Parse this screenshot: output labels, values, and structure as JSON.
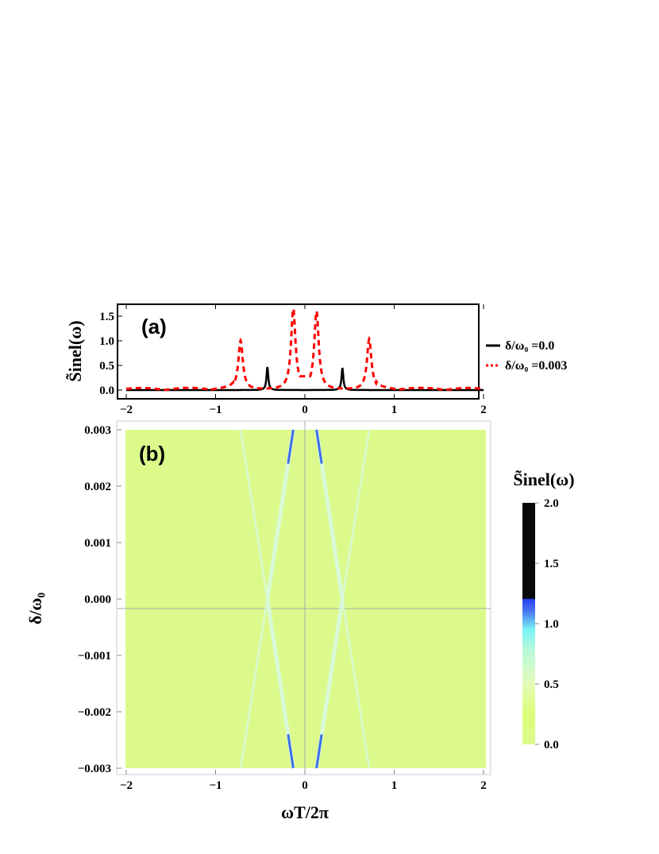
{
  "chart_data": [
    {
      "type": "line",
      "panel_label": "(a)",
      "ylabel": "S̃inel(ω)",
      "xlim": [
        -2,
        2
      ],
      "ylim": [
        -0.15,
        1.8
      ],
      "xticks": [
        "−2",
        "−1",
        "0",
        "1",
        "2"
      ],
      "xtick_values": [
        -2,
        -1,
        0,
        1,
        2
      ],
      "yticks": [
        "0.0",
        "0.5",
        "1.0",
        "1.5"
      ],
      "ytick_values": [
        0,
        0.5,
        1,
        1.5
      ],
      "legend_position": "right-outside",
      "series": [
        {
          "name": "δ/ω₀ =0.0",
          "color": "#000000",
          "style": "solid",
          "width": 0.012,
          "peaks": [
            {
              "x": -0.42,
              "y": 0.47
            },
            {
              "x": 0.42,
              "y": 0.45
            }
          ]
        },
        {
          "name": "δ/ω₀ =0.003",
          "color": "#ff0000",
          "style": "dashed",
          "width": 0.03,
          "peaks": [
            {
              "x": -0.72,
              "y": 1.0
            },
            {
              "x": -0.13,
              "y": 1.63
            },
            {
              "x": 0.13,
              "y": 1.58
            },
            {
              "x": 0.72,
              "y": 1.03
            }
          ]
        }
      ]
    },
    {
      "type": "heatmap",
      "panel_label": "(b)",
      "xlabel": "ωT/2π",
      "ylabel": "δ/ω₀",
      "xlim": [
        -2,
        2
      ],
      "ylim": [
        -0.003,
        0.003
      ],
      "xticks": [
        "−2",
        "−1",
        "0",
        "1",
        "2"
      ],
      "xtick_values": [
        -2,
        -1,
        0,
        1,
        2
      ],
      "yticks": [
        "0.003",
        "0.002",
        "0.001",
        "0.000",
        "−0.001",
        "−0.002",
        "−0.003"
      ],
      "ytick_values": [
        0.003,
        0.002,
        0.001,
        0,
        -0.001,
        -0.002,
        -0.003
      ],
      "colorbar": {
        "title": "S̃inel(ω)",
        "ticks": [
          "0.0",
          "0.5",
          "1.0",
          "1.5",
          "2.0"
        ],
        "tick_values": [
          0,
          0.5,
          1,
          1.5,
          2
        ],
        "range": [
          0,
          2
        ],
        "stops": [
          {
            "v": 0,
            "c": "#dcfa8c"
          },
          {
            "v": 0.25,
            "c": "#dcfd78"
          },
          {
            "v": 0.5,
            "c": "#e4fbb8"
          },
          {
            "v": 0.8,
            "c": "#b4f8dc"
          },
          {
            "v": 0.95,
            "c": "#78f4f4"
          },
          {
            "v": 1.1,
            "c": "#4a78f0"
          },
          {
            "v": 1.2,
            "c": "#2a40f0"
          },
          {
            "v": 1.21,
            "c": "#08090a"
          },
          {
            "v": 2,
            "c": "#08090a"
          }
        ]
      },
      "background_value": 0.1,
      "branches": [
        {
          "from": [
            0.42,
            0
          ],
          "to": [
            0.13,
            0.003
          ],
          "peak_value": 1.3
        },
        {
          "from": [
            0.42,
            0
          ],
          "to": [
            0.72,
            0.003
          ],
          "peak_value": 0.5
        }
      ]
    }
  ]
}
